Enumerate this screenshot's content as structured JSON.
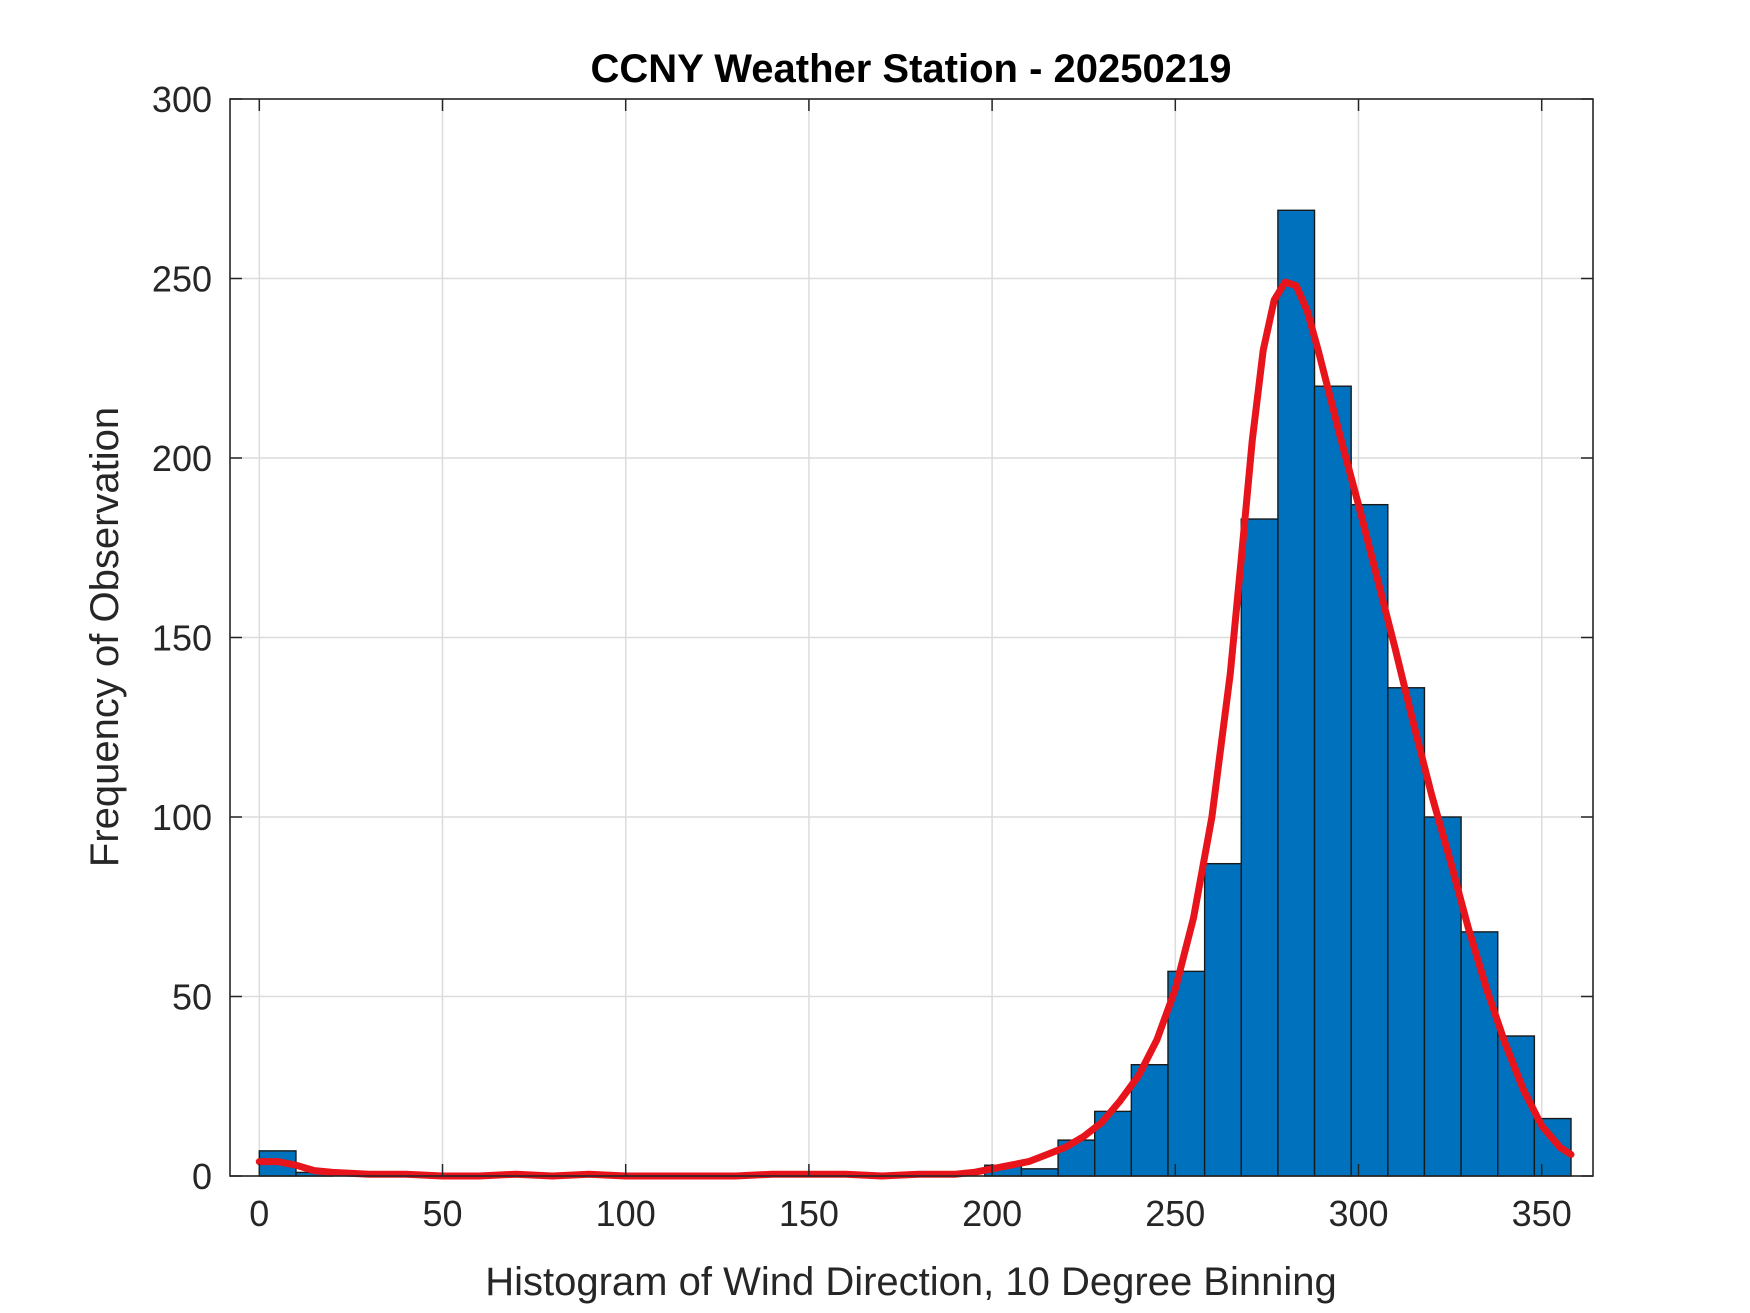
{
  "chart_data": {
    "type": "bar",
    "title": "CCNY Weather Station - 20250219",
    "xlabel": "Histogram of Wind Direction, 10 Degree Binning",
    "ylabel": "Frequency of Observation",
    "xlim": [
      -8,
      364
    ],
    "ylim": [
      0,
      300
    ],
    "grid": true,
    "xticks": [
      0,
      50,
      100,
      150,
      200,
      250,
      300,
      350
    ],
    "yticks": [
      0,
      50,
      100,
      150,
      200,
      250,
      300
    ],
    "bin_width": 10,
    "bins": [
      {
        "start": 0,
        "value": 7
      },
      {
        "start": 10,
        "value": 1
      },
      {
        "start": 20,
        "value": 0
      },
      {
        "start": 30,
        "value": 0
      },
      {
        "start": 40,
        "value": 0
      },
      {
        "start": 50,
        "value": 0
      },
      {
        "start": 60,
        "value": 0
      },
      {
        "start": 70,
        "value": 0
      },
      {
        "start": 80,
        "value": 0
      },
      {
        "start": 90,
        "value": 0
      },
      {
        "start": 100,
        "value": 0
      },
      {
        "start": 110,
        "value": 0
      },
      {
        "start": 120,
        "value": 0
      },
      {
        "start": 130,
        "value": 0
      },
      {
        "start": 140,
        "value": 0
      },
      {
        "start": 150,
        "value": 0
      },
      {
        "start": 160,
        "value": 0
      },
      {
        "start": 170,
        "value": 0
      },
      {
        "start": 180,
        "value": 0
      },
      {
        "start": 190,
        "value": 0
      },
      {
        "start": 198,
        "value": 3
      },
      {
        "start": 208,
        "value": 2
      },
      {
        "start": 218,
        "value": 10
      },
      {
        "start": 228,
        "value": 18
      },
      {
        "start": 238,
        "value": 31
      },
      {
        "start": 248,
        "value": 57
      },
      {
        "start": 258,
        "value": 87
      },
      {
        "start": 268,
        "value": 183
      },
      {
        "start": 278,
        "value": 269
      },
      {
        "start": 288,
        "value": 220
      },
      {
        "start": 298,
        "value": 187
      },
      {
        "start": 308,
        "value": 136
      },
      {
        "start": 318,
        "value": 100
      },
      {
        "start": 328,
        "value": 68
      },
      {
        "start": 338,
        "value": 39
      },
      {
        "start": 348,
        "value": 16
      }
    ],
    "fit_curve": {
      "x": [
        0,
        5,
        10,
        15,
        20,
        30,
        40,
        50,
        60,
        70,
        80,
        90,
        100,
        110,
        120,
        130,
        140,
        150,
        160,
        170,
        180,
        190,
        195,
        200,
        205,
        210,
        215,
        220,
        225,
        230,
        235,
        240,
        245,
        250,
        255,
        260,
        265,
        268,
        271,
        274,
        277,
        280,
        283,
        286,
        289,
        292,
        295,
        300,
        305,
        310,
        315,
        320,
        325,
        330,
        335,
        340,
        345,
        350,
        355,
        358
      ],
      "y": [
        4,
        4,
        3,
        1.5,
        1,
        0.5,
        0.5,
        0,
        0,
        0.5,
        0,
        0.5,
        0,
        0,
        0,
        0,
        0.5,
        0.5,
        0.5,
        0,
        0.5,
        0.5,
        1,
        2,
        3,
        4,
        6,
        8,
        11,
        15,
        21,
        28,
        38,
        52,
        72,
        100,
        140,
        172,
        205,
        230,
        244,
        249,
        248,
        241,
        230,
        218,
        206,
        187,
        167,
        147,
        126,
        106,
        88,
        69,
        52,
        37,
        24,
        14,
        8,
        6
      ]
    },
    "bar_color": "#0072BD",
    "fit_color": "#E8141C"
  }
}
